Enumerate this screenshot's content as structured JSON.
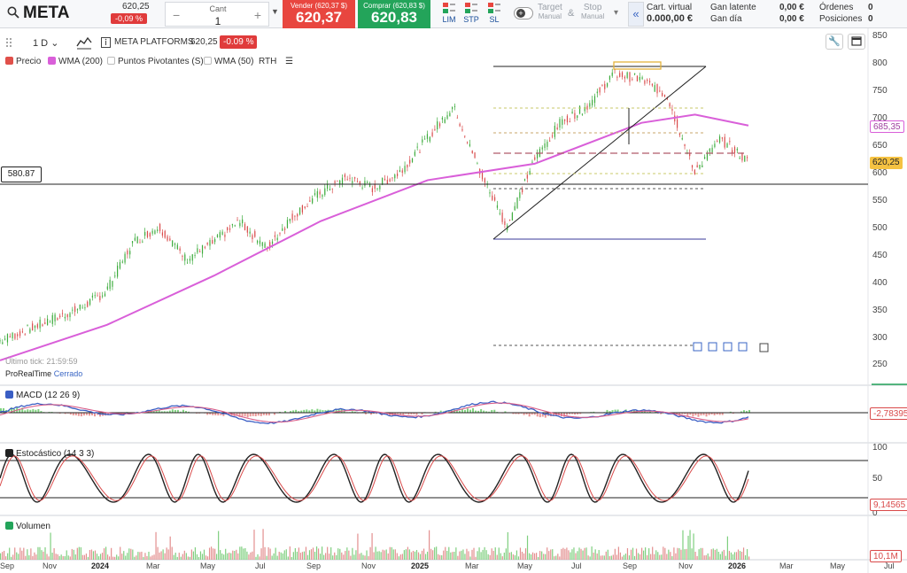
{
  "header": {
    "symbol": "META",
    "last_price": "620,25",
    "change_pct": "-0,09 %",
    "qty_label": "Cant",
    "qty_value": "1",
    "sell_label": "Vender (620,37 $)",
    "sell_price": "620,37",
    "buy_label": "Comprar (620,83 $)",
    "buy_price": "620,83",
    "order_types": [
      "LIM",
      "STP",
      "SL"
    ],
    "target_label": "Target",
    "target_mode": "Manual",
    "amp": "&",
    "stop_label": "Stop",
    "stop_mode": "Manual",
    "cart_label": "Cart. virtual",
    "cart_value": "0.000,00 €",
    "gan_latente_label": "Gan latente",
    "gan_latente_value": "0,00 €",
    "gan_dia_label": "Gan día",
    "gan_dia_value": "0,00 €",
    "ordenes_label": "Órdenes",
    "ordenes_value": "0",
    "posiciones_label": "Posiciones",
    "posiciones_value": "0"
  },
  "chart_header": {
    "timeframe": "1 D",
    "instrument": "META PLATFORMS",
    "price": "620,25",
    "change": "-0.09 %",
    "legend": [
      {
        "label": "Precio",
        "color": "#e0504a"
      },
      {
        "label": "WMA (200)",
        "color": "#d95fd9"
      },
      {
        "label": "Puntos Pivotantes (S)",
        "color": "#ffffff"
      },
      {
        "label": "WMA (50)",
        "color": "#ffffff"
      },
      {
        "label": "RTH",
        "color": ""
      }
    ],
    "last_tick": "Último tick: 21:59:59",
    "provider": "ProRealTime",
    "status": "Cerrado",
    "level_badge": "580.87"
  },
  "price_axis": {
    "ticks": [
      "850",
      "800",
      "750",
      "700",
      "650",
      "600",
      "550",
      "500",
      "450",
      "400",
      "350",
      "300",
      "250"
    ],
    "wma_tag": "685,35",
    "price_tag": "620,25"
  },
  "macd": {
    "title": "MACD (12 26 9)",
    "value": "-2,78395"
  },
  "stoch": {
    "title": "Estocástico (14 3 3)",
    "ticks": [
      "100",
      "50",
      "0"
    ],
    "value": "9,14565"
  },
  "volume": {
    "title": "Volumen",
    "value": "10,1M"
  },
  "x_axis": [
    {
      "label": "Sep",
      "bold": false
    },
    {
      "label": "Nov",
      "bold": false
    },
    {
      "label": "2024",
      "bold": true
    },
    {
      "label": "Mar",
      "bold": false
    },
    {
      "label": "May",
      "bold": false
    },
    {
      "label": "Jul",
      "bold": false
    },
    {
      "label": "Sep",
      "bold": false
    },
    {
      "label": "Nov",
      "bold": false
    },
    {
      "label": "2025",
      "bold": true
    },
    {
      "label": "Mar",
      "bold": false
    },
    {
      "label": "May",
      "bold": false
    },
    {
      "label": "Jul",
      "bold": false
    },
    {
      "label": "Sep",
      "bold": false
    },
    {
      "label": "Nov",
      "bold": false
    },
    {
      "label": "2026",
      "bold": true
    },
    {
      "label": "Mar",
      "bold": false
    },
    {
      "label": "May",
      "bold": false
    },
    {
      "label": "Jul",
      "bold": false
    }
  ],
  "chart_data": {
    "type": "line",
    "series": [
      {
        "name": "Precio",
        "color": "#3cab3c",
        "x": [
          "2023-09",
          "2023-10",
          "2023-11",
          "2023-12",
          "2024-01",
          "2024-02",
          "2024-03",
          "2024-04",
          "2024-05",
          "2024-06",
          "2024-07",
          "2024-08",
          "2024-09",
          "2024-10",
          "2024-11",
          "2024-12",
          "2025-01",
          "2025-02",
          "2025-03",
          "2025-04",
          "2025-05",
          "2025-06",
          "2025-07",
          "2025-08",
          "2025-09",
          "2025-10",
          "2025-11",
          "2025-12",
          "2026-01"
        ],
        "values": [
          290,
          310,
          330,
          350,
          380,
          470,
          500,
          440,
          470,
          510,
          460,
          520,
          560,
          590,
          570,
          600,
          660,
          720,
          600,
          500,
          620,
          690,
          720,
          780,
          770,
          740,
          600,
          660,
          620
        ]
      },
      {
        "name": "WMA (200)",
        "color": "#d95fd9",
        "x": [
          "2023-09",
          "2024-01",
          "2024-05",
          "2024-09",
          "2025-01",
          "2025-05",
          "2025-09",
          "2025-11",
          "2026-01"
        ],
        "values": [
          255,
          320,
          410,
          510,
          585,
          615,
          690,
          705,
          685
        ]
      }
    ],
    "ylim": [
      250,
      850
    ]
  }
}
